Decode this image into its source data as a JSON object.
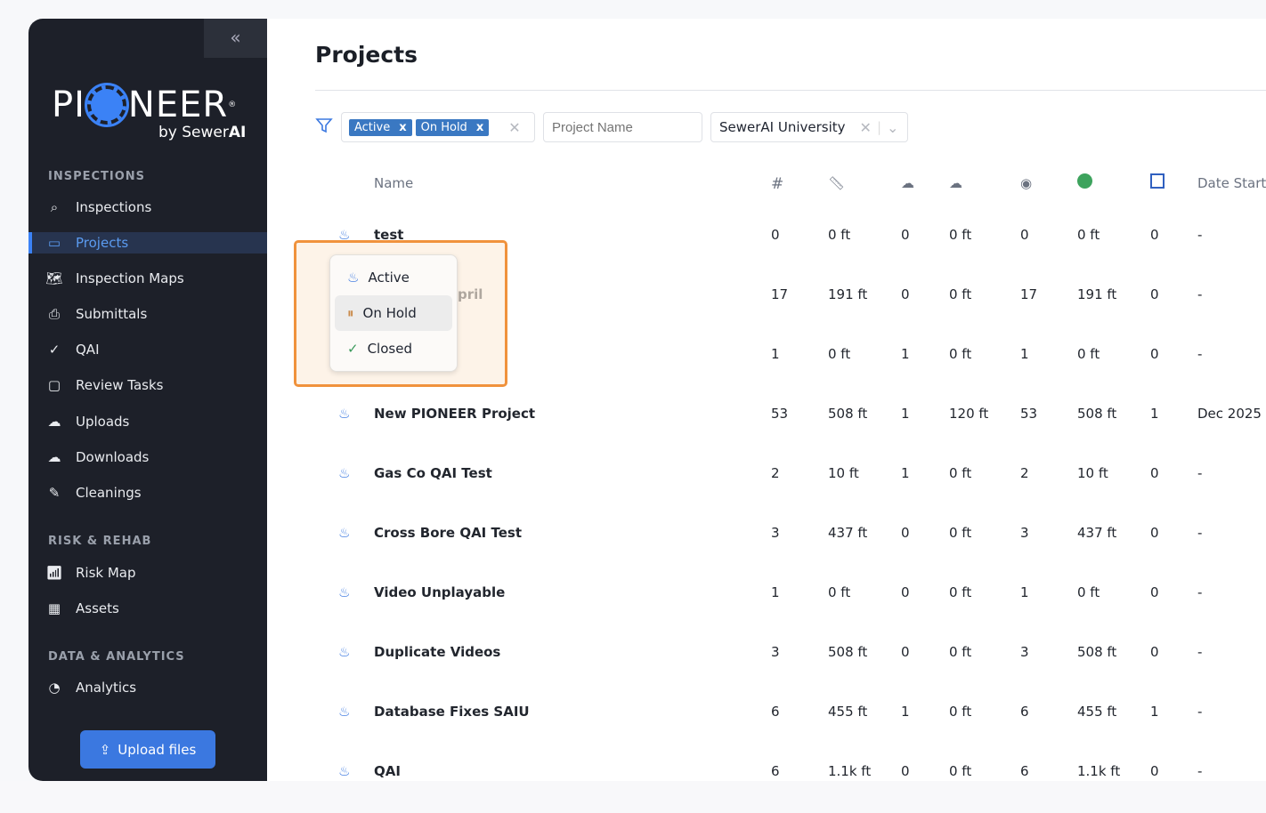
{
  "sidebar": {
    "collapse_icon": "chevrons-left-icon",
    "logo": "PIONEER by SewerAI",
    "logo_word_left": "PI",
    "logo_word_right": "NEER",
    "logo_by": "by Sewer",
    "logo_ai": "AI",
    "sections": [
      {
        "title": "INSPECTIONS",
        "items": [
          {
            "label": "Inspections",
            "icon": "search-icon"
          },
          {
            "label": "Projects",
            "icon": "folder-icon",
            "selected": true
          },
          {
            "label": "Inspection Maps",
            "icon": "map-icon"
          },
          {
            "label": "Submittals",
            "icon": "inbox-icon"
          },
          {
            "label": "QAI",
            "icon": "check-circle-icon"
          },
          {
            "label": "Review Tasks",
            "icon": "comment-icon"
          },
          {
            "label": "Uploads",
            "icon": "cloud-upload-icon"
          },
          {
            "label": "Downloads",
            "icon": "cloud-download-icon"
          },
          {
            "label": "Cleanings",
            "icon": "broom-icon"
          }
        ]
      },
      {
        "title": "RISK & REHAB",
        "items": [
          {
            "label": "Risk Map",
            "icon": "chart-icon"
          },
          {
            "label": "Assets",
            "icon": "table-icon"
          }
        ]
      },
      {
        "title": "DATA & ANALYTICS",
        "items": [
          {
            "label": "Analytics",
            "icon": "pie-icon"
          }
        ]
      }
    ],
    "upload_label": "Upload files"
  },
  "page": {
    "title": "Projects"
  },
  "filters": {
    "status_chips": [
      "Active",
      "On Hold"
    ],
    "project_name_placeholder": "Project Name",
    "organization": "SewerAI University"
  },
  "table": {
    "name_header": "Name",
    "count_header": "#",
    "date_header": "Date Started",
    "header_icons": [
      "hash",
      "ruler-icon",
      "cloud-upload-icon",
      "cloud-upload-icon",
      "eye-icon",
      "green-circle-icon",
      "blue-box-icon"
    ],
    "rows": [
      [
        "test",
        "0",
        "0 ft",
        "0",
        "0 ft",
        "0",
        "0 ft",
        "0",
        "-"
      ],
      [
        "pril",
        "17",
        "191 ft",
        "0",
        "0 ft",
        "17",
        "191 ft",
        "0",
        "-"
      ],
      [
        "",
        "1",
        "0 ft",
        "1",
        "0 ft",
        "1",
        "0 ft",
        "0",
        "-"
      ],
      [
        "New PIONEER Project",
        "53",
        "508 ft",
        "1",
        "120 ft",
        "53",
        "508 ft",
        "1",
        "Dec 2025"
      ],
      [
        "Gas Co QAI Test",
        "2",
        "10 ft",
        "1",
        "0 ft",
        "2",
        "10 ft",
        "0",
        "-"
      ],
      [
        "Cross Bore QAI Test",
        "3",
        "437 ft",
        "0",
        "0 ft",
        "3",
        "437 ft",
        "0",
        "-"
      ],
      [
        "Video Unplayable",
        "1",
        "0 ft",
        "0",
        "0 ft",
        "1",
        "0 ft",
        "0",
        "-"
      ],
      [
        "Duplicate Videos",
        "3",
        "508 ft",
        "0",
        "0 ft",
        "3",
        "508 ft",
        "0",
        "-"
      ],
      [
        "Database Fixes SAIU",
        "6",
        "455 ft",
        "1",
        "0 ft",
        "6",
        "455 ft",
        "1",
        "-"
      ],
      [
        "QAI",
        "6",
        "1.1k ft",
        "0",
        "0 ft",
        "6",
        "1.1k ft",
        "0",
        "-"
      ]
    ]
  },
  "status_menu": {
    "options": [
      {
        "label": "Active",
        "icon": "flame-icon",
        "color": "#3b78e0"
      },
      {
        "label": "On Hold",
        "icon": "pause-circle-icon",
        "color": "#c98a4a"
      },
      {
        "label": "Closed",
        "icon": "check-circle-icon",
        "color": "#3a9a5b"
      }
    ]
  }
}
